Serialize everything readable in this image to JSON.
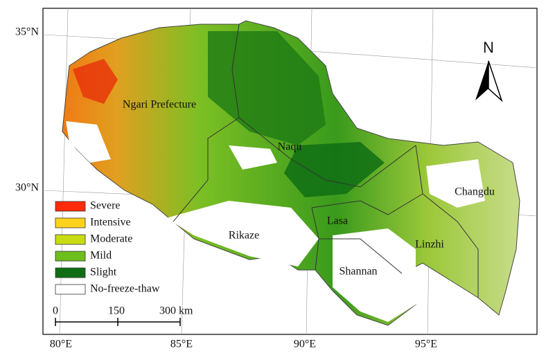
{
  "map": {
    "lat_labels": [
      "35°N",
      "30°N"
    ],
    "lon_labels": [
      "80°E",
      "85°E",
      "90°E",
      "95°E"
    ],
    "regions": [
      {
        "label": "Ngari Prefecture"
      },
      {
        "label": "Naqu"
      },
      {
        "label": "Changdu"
      },
      {
        "label": "Lasa"
      },
      {
        "label": "Rikaze"
      },
      {
        "label": "Linzhi"
      },
      {
        "label": "Shannan"
      }
    ],
    "legend": [
      {
        "label": "Severe",
        "color": "#ff2a0a"
      },
      {
        "label": "Intensive",
        "color": "#ffd21e"
      },
      {
        "label": "Moderate",
        "color": "#c8dc14"
      },
      {
        "label": "Mild",
        "color": "#6ebe1e"
      },
      {
        "label": "Slight",
        "color": "#0f6e14"
      },
      {
        "label": "No-freeze-thaw",
        "color": "#ffffff"
      }
    ],
    "north": "N",
    "scale_bar": [
      "0",
      "150",
      "300 km"
    ]
  }
}
